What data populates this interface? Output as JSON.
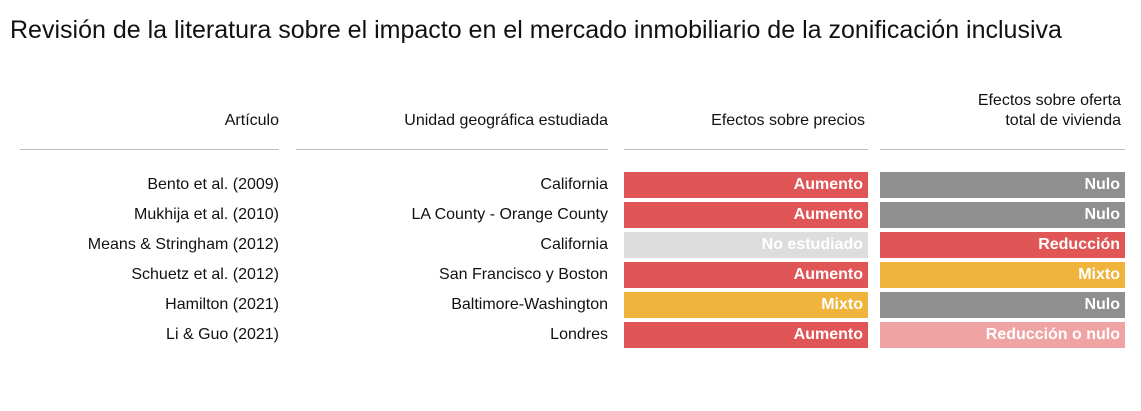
{
  "chart_data": {
    "type": "table",
    "title": "Revisión de la literatura sobre el impacto en el mercado inmobiliario de la zonificación inclusiva",
    "columns": {
      "article": "Artículo",
      "geo": "Unidad geográfica estudiada",
      "prices": "Efectos sobre precios",
      "supply_line1": "Efectos sobre oferta",
      "supply_line2": "total de vivienda"
    },
    "rows": [
      {
        "article": "Bento et al. (2009)",
        "geo": "California",
        "prices": "Aumento",
        "supply": "Nulo"
      },
      {
        "article": "Mukhija et al. (2010)",
        "geo": "LA County - Orange County",
        "prices": "Aumento",
        "supply": "Nulo"
      },
      {
        "article": "Means & Stringham (2012)",
        "geo": "California",
        "prices": "No estudiado",
        "supply": "Reducción"
      },
      {
        "article": "Schuetz et al. (2012)",
        "geo": "San Francisco y Boston",
        "prices": "Aumento",
        "supply": "Mixto"
      },
      {
        "article": "Hamilton (2021)",
        "geo": "Baltimore-Washington",
        "prices": "Mixto",
        "supply": "Nulo"
      },
      {
        "article": "Li & Guo (2021)",
        "geo": "Londres",
        "prices": "Aumento",
        "supply": "Reducción o nulo"
      }
    ],
    "category_colors": {
      "Aumento": "#e05555",
      "Nulo": "#8f8f8f",
      "No estudiado": "#dddddd",
      "Reducción": "#e05555",
      "Mixto": "#f0b43c",
      "Reducción o nulo": "#f0a3a3"
    }
  }
}
